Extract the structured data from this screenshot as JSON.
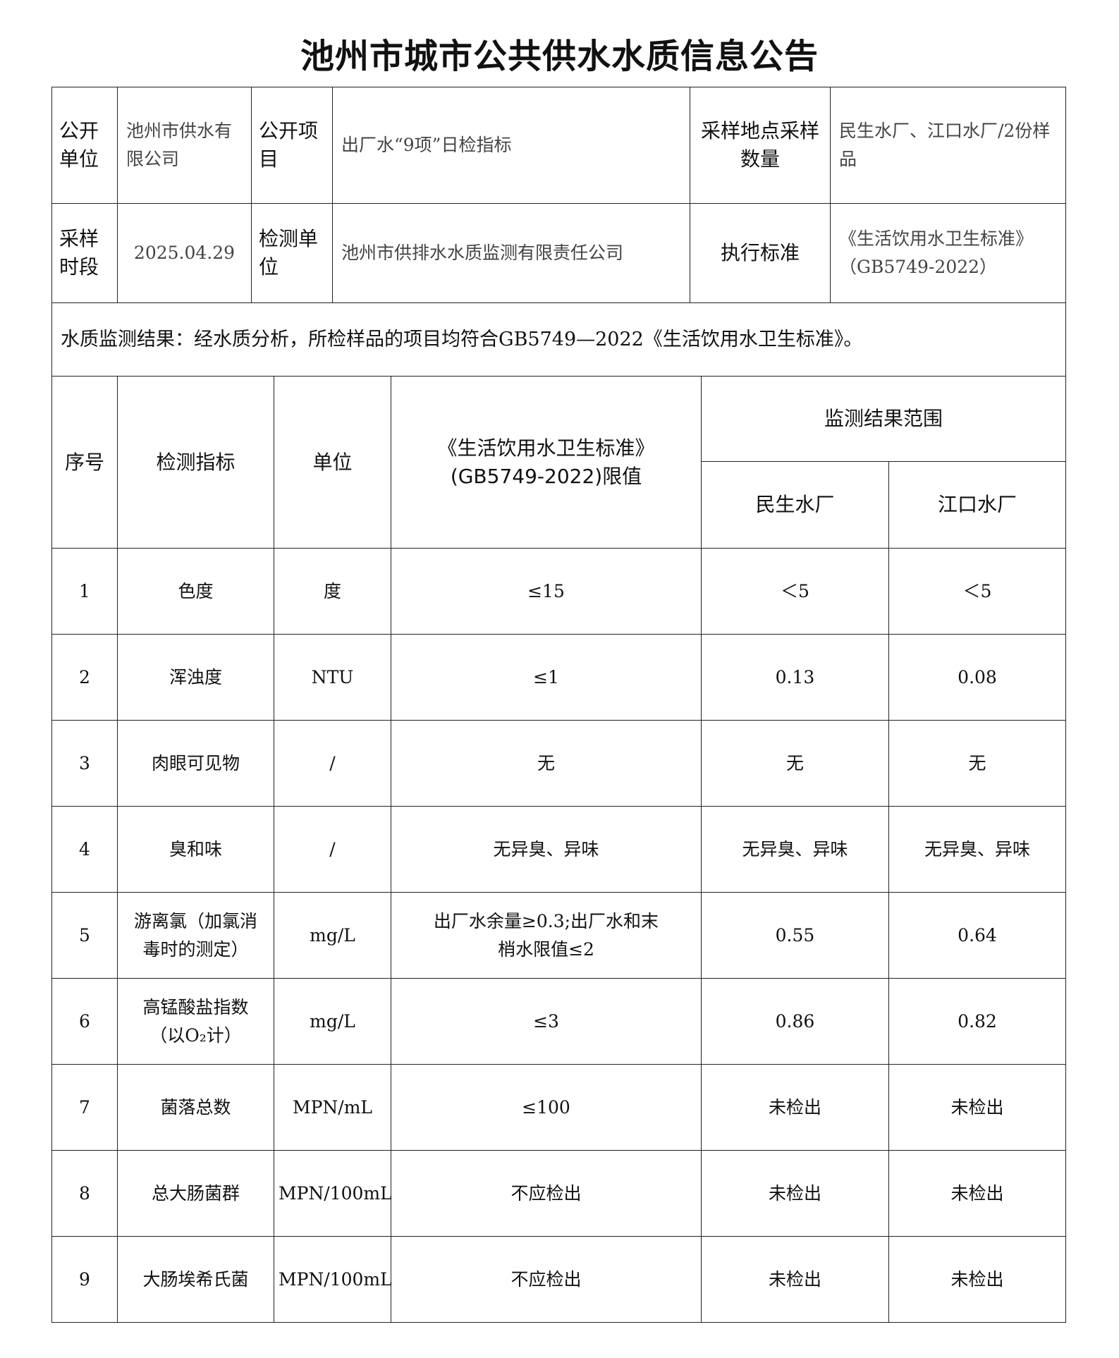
{
  "title": "池州市城市公共供水水质信息公告",
  "info": {
    "unit_label": "公开单位",
    "unit_value": "池州市供水有限公司",
    "item_label": "公开项目",
    "item_value": "出厂水“9项”日检指标",
    "site_label": "采样地点采样数量",
    "site_value": "民生水厂、江口水厂/2份样品",
    "period_label": "采样时段",
    "period_value": "2025.04.29",
    "lab_label": "检测单位",
    "lab_value": "池州市供排水水质监测有限责任公司",
    "std_label": "执行标准",
    "std_value": "《生活饮用水卫生标准》（GB5749-2022）",
    "result": "水质监测结果：经水质分析，所检样品的项目均符合GB5749—2022《生活饮用水卫生标准》。"
  },
  "table": {
    "headers": {
      "no": "序号",
      "indicator": "检测指标",
      "unit": "单位",
      "limit": "《生活饮用水卫生标准》(GB5749-2022)限值",
      "range": "监测结果范围",
      "plant1": "民生水厂",
      "plant2": "江口水厂"
    },
    "rows": [
      {
        "no": "1",
        "indicator": "色度",
        "unit": "度",
        "limit": "≤15",
        "plant1": "＜5",
        "plant2": "＜5"
      },
      {
        "no": "2",
        "indicator": "浑浊度",
        "unit": "NTU",
        "limit": "≤1",
        "plant1": "0.13",
        "plant2": "0.08"
      },
      {
        "no": "3",
        "indicator": "肉眼可见物",
        "unit": "/",
        "limit": "无",
        "plant1": "无",
        "plant2": "无"
      },
      {
        "no": "4",
        "indicator": "臭和味",
        "unit": "/",
        "limit": "无异臭、异味",
        "plant1": "无异臭、异味",
        "plant2": "无异臭、异味"
      },
      {
        "no": "5",
        "indicator": "游离氯（加氯消毒时的测定）",
        "unit": "mg/L",
        "limit": "出厂水余量≥0.3;出厂水和末梢水限值≤2",
        "plant1": "0.55",
        "plant2": "0.64"
      },
      {
        "no": "6",
        "indicator": "高锰酸盐指数（以O₂计）",
        "unit": "mg/L",
        "limit": "≤3",
        "plant1": "0.86",
        "plant2": "0.82"
      },
      {
        "no": "7",
        "indicator": "菌落总数",
        "unit": "MPN/mL",
        "limit": "≤100",
        "plant1": "未检出",
        "plant2": "未检出"
      },
      {
        "no": "8",
        "indicator": "总大肠菌群",
        "unit": "MPN/100mL",
        "limit": "不应检出",
        "plant1": "未检出",
        "plant2": "未检出"
      },
      {
        "no": "9",
        "indicator": "大肠埃希氏菌",
        "unit": "MPN/100mL",
        "limit": "不应检出",
        "plant1": "未检出",
        "plant2": "未检出"
      }
    ]
  }
}
